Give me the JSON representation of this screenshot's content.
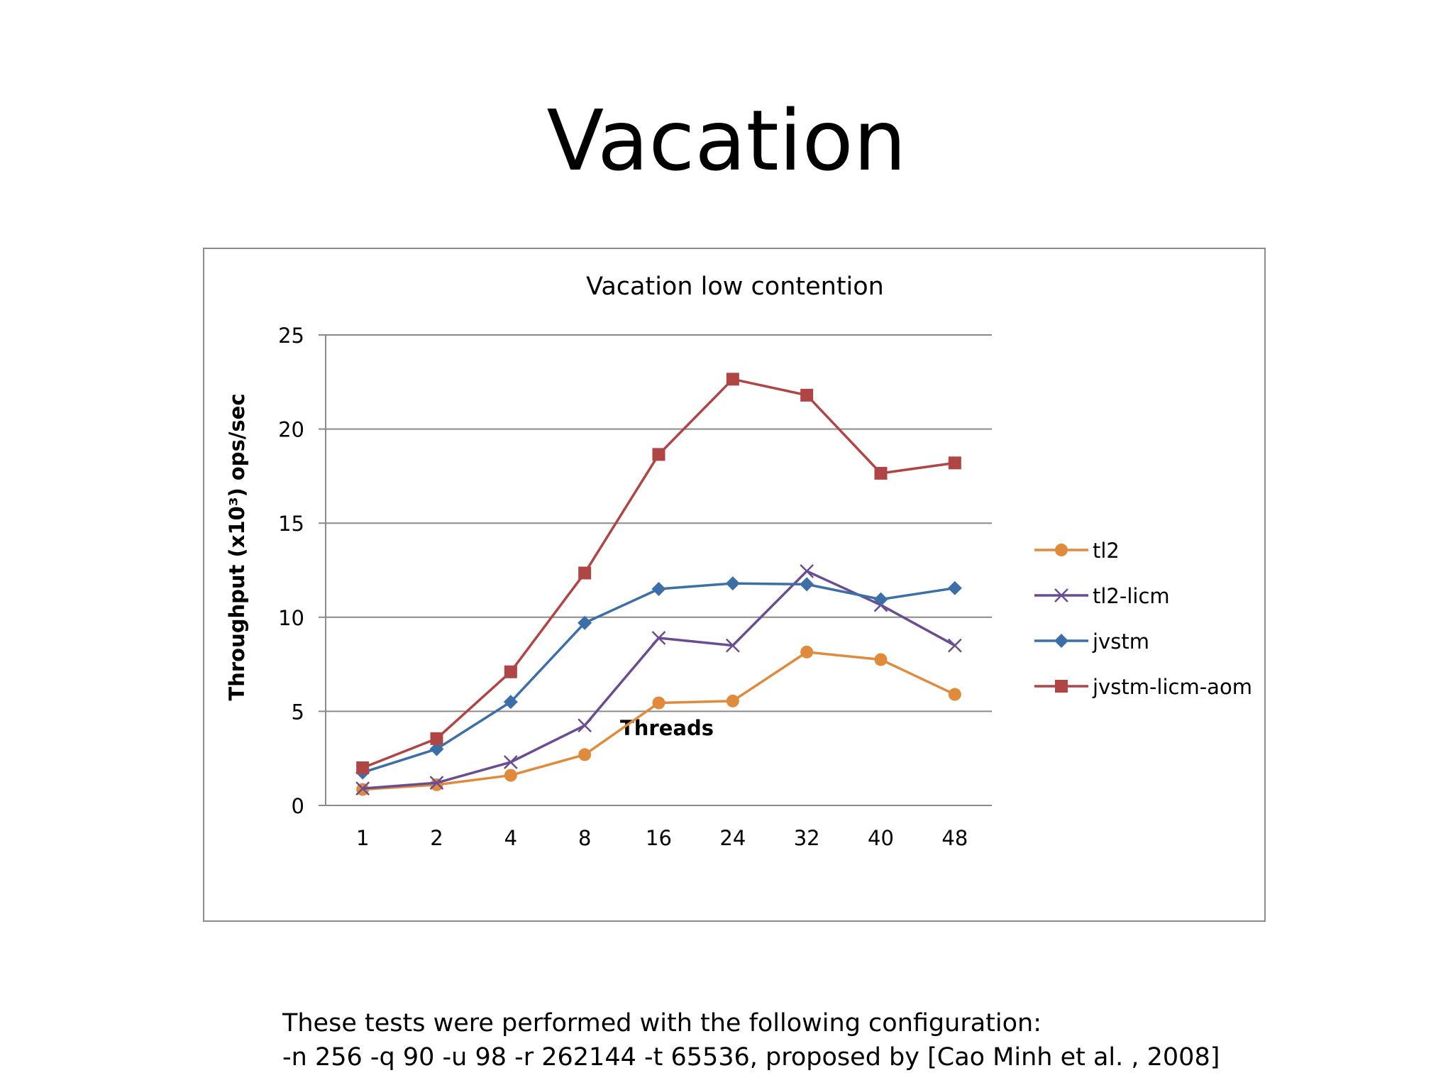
{
  "slide": {
    "title": "Vacation",
    "footnote_lines": [
      "These tests were performed with the following configuration:",
      "-n 256 -q 90 -u 98 -r 262144 -t 65536, proposed by [Cao Minh et al. , 2008]"
    ]
  },
  "chart_data": {
    "type": "line",
    "title": "Vacation low contention",
    "xlabel": "Threads",
    "ylabel": "Throughput (x10³) ops/sec",
    "categories": [
      "1",
      "2",
      "4",
      "8",
      "16",
      "24",
      "32",
      "40",
      "48"
    ],
    "ylim": [
      0,
      25
    ],
    "yticks": [
      0,
      5,
      10,
      15,
      20,
      25
    ],
    "grid": true,
    "legend_position": "right",
    "series": [
      {
        "name": "tl2",
        "color": "#e08a3c",
        "marker": "circle",
        "values": [
          0.85,
          1.1,
          1.6,
          2.7,
          5.45,
          5.55,
          8.15,
          7.75,
          5.9
        ]
      },
      {
        "name": "tl2-licm",
        "color": "#6a4c93",
        "marker": "x",
        "values": [
          0.9,
          1.2,
          2.3,
          4.25,
          8.9,
          8.5,
          12.45,
          10.65,
          8.5
        ]
      },
      {
        "name": "jvstm",
        "color": "#3c6fa8",
        "marker": "diamond",
        "values": [
          1.75,
          3.0,
          5.5,
          9.7,
          11.5,
          11.8,
          11.75,
          10.95,
          11.55
        ]
      },
      {
        "name": "jvstm-licm-aom",
        "color": "#b04545",
        "marker": "square",
        "values": [
          2.0,
          3.55,
          7.1,
          12.35,
          18.65,
          22.65,
          21.8,
          17.65,
          18.2
        ]
      }
    ]
  }
}
